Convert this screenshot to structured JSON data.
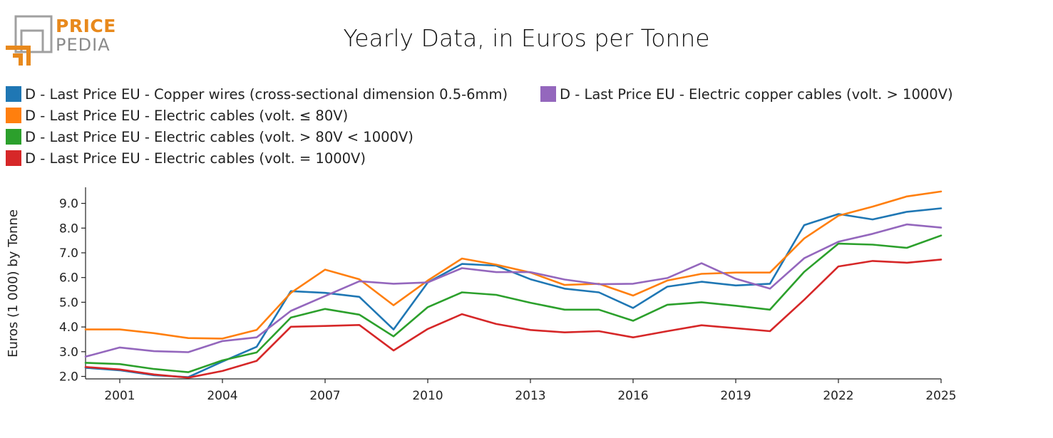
{
  "logo": {
    "word1": "PRICE",
    "word2": "PEDIA",
    "accent_color": "#e8891c",
    "gray_color": "#a0a0a0"
  },
  "chart_data": {
    "type": "line",
    "title": "Yearly Data, in Euros per Tonne",
    "xlabel": "",
    "ylabel": "Euros (1 000) by Tonne",
    "x": [
      2000,
      2001,
      2002,
      2003,
      2004,
      2005,
      2006,
      2007,
      2008,
      2009,
      2010,
      2011,
      2012,
      2013,
      2014,
      2015,
      2016,
      2017,
      2018,
      2019,
      2020,
      2021,
      2022,
      2023,
      2024,
      2025
    ],
    "xlim": [
      2000,
      2025
    ],
    "ylim": [
      1.9,
      9.65
    ],
    "xticks": [
      {
        "value": 2001,
        "label": "2001"
      },
      {
        "value": 2004,
        "label": "2004"
      },
      {
        "value": 2007,
        "label": "2007"
      },
      {
        "value": 2010,
        "label": "2010"
      },
      {
        "value": 2013,
        "label": "2013"
      },
      {
        "value": 2016,
        "label": "2016"
      },
      {
        "value": 2019,
        "label": "2019"
      },
      {
        "value": 2022,
        "label": "2022"
      },
      {
        "value": 2025,
        "label": "2025"
      }
    ],
    "yticks": [
      {
        "value": 2,
        "label": "2.0"
      },
      {
        "value": 3,
        "label": "3.0"
      },
      {
        "value": 4,
        "label": "4.0"
      },
      {
        "value": 5,
        "label": "5.0"
      },
      {
        "value": 6,
        "label": "6.0"
      },
      {
        "value": 7,
        "label": "7.0"
      },
      {
        "value": 8,
        "label": "8.0"
      },
      {
        "value": 9,
        "label": "9.0"
      }
    ],
    "grid": false,
    "legend_position": "top-left",
    "series": [
      {
        "name": "D - Last Price EU - Copper wires (cross-sectional dimension 0.5-6mm)",
        "color": "#1f77b4",
        "values": [
          2.35,
          2.25,
          2.05,
          1.97,
          2.6,
          3.2,
          5.45,
          5.38,
          5.22,
          3.9,
          5.8,
          6.55,
          6.48,
          5.93,
          5.55,
          5.4,
          4.77,
          5.63,
          5.83,
          5.68,
          5.75,
          8.12,
          8.57,
          8.35,
          8.66,
          8.8
        ]
      },
      {
        "name": "D - Last Price EU - Electric cables (volt. ≤ 80V)",
        "color": "#ff7f0e",
        "values": [
          3.9,
          3.9,
          3.75,
          3.55,
          3.53,
          3.88,
          5.38,
          6.32,
          5.93,
          4.88,
          5.88,
          6.77,
          6.52,
          6.2,
          5.7,
          5.75,
          5.27,
          5.88,
          6.15,
          6.2,
          6.2,
          7.58,
          8.5,
          8.87,
          9.28,
          9.48
        ]
      },
      {
        "name": "D - Last Price EU - Electric cables (volt. > 80V < 1000V)",
        "color": "#2ca02c",
        "values": [
          2.55,
          2.5,
          2.3,
          2.17,
          2.65,
          2.97,
          4.38,
          4.73,
          4.5,
          3.62,
          4.8,
          5.4,
          5.3,
          4.98,
          4.7,
          4.7,
          4.25,
          4.9,
          5.0,
          4.86,
          4.7,
          6.23,
          7.37,
          7.33,
          7.2,
          7.7
        ]
      },
      {
        "name": "D - Last Price EU - Electric cables (volt. = 1000V)",
        "color": "#d62728",
        "values": [
          2.38,
          2.28,
          2.08,
          1.95,
          2.22,
          2.63,
          4.01,
          4.04,
          4.08,
          3.05,
          3.92,
          4.52,
          4.12,
          3.88,
          3.78,
          3.83,
          3.58,
          3.83,
          4.07,
          3.95,
          3.83,
          5.1,
          6.45,
          6.67,
          6.6,
          6.73
        ]
      },
      {
        "name": "D - Last Price EU - Electric copper cables (volt. > 1000V)",
        "color": "#9467bd",
        "values": [
          2.8,
          3.17,
          3.02,
          2.98,
          3.43,
          3.58,
          4.65,
          5.25,
          5.85,
          5.75,
          5.8,
          6.38,
          6.22,
          6.22,
          5.92,
          5.73,
          5.75,
          5.98,
          6.58,
          5.95,
          5.55,
          6.78,
          7.45,
          7.77,
          8.15,
          8.02
        ]
      }
    ]
  }
}
